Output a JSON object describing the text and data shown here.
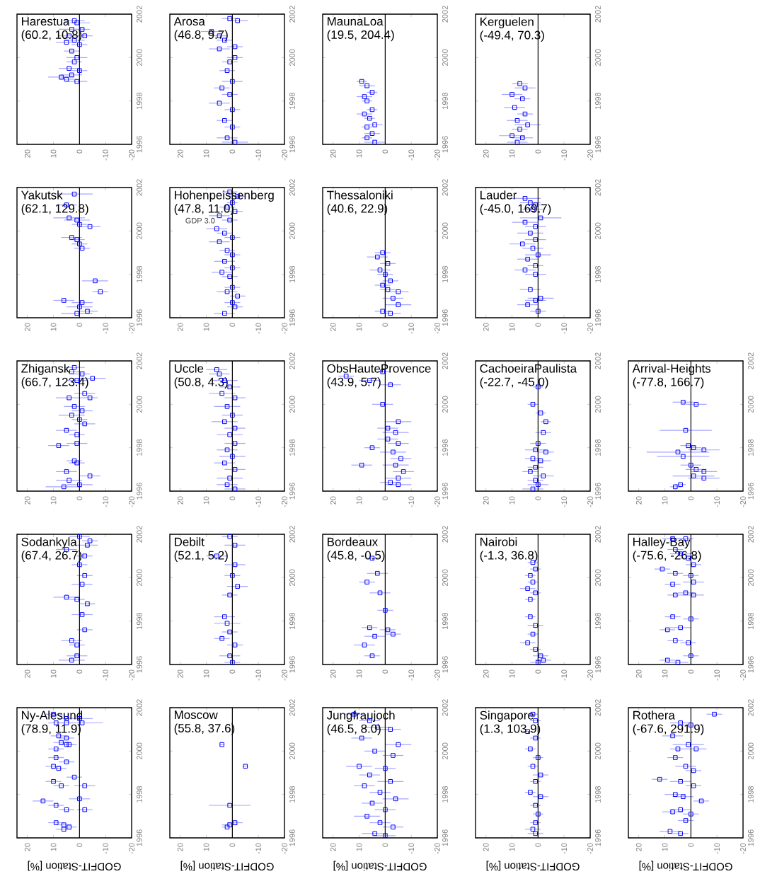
{
  "chart_data": [
    {
      "type": "scatter",
      "title": "Harestua",
      "subtitle": "(60.2, 10.8)",
      "xlim": [
        24,
        -20
      ],
      "ylim": [
        1996,
        2002
      ],
      "xticks": [
        20,
        10,
        0,
        -10,
        -20
      ],
      "yticks": [
        1996,
        1998,
        2000,
        2002
      ],
      "marker": "square",
      "ref_lines": [
        {
          "axis": "x",
          "value": 0
        }
      ],
      "series": [
        {
          "color": "#0000ff",
          "x": [
            2,
            1,
            3,
            -1,
            4,
            -2,
            2,
            5,
            0,
            3,
            1,
            2,
            4,
            0,
            3,
            7,
            5,
            1
          ],
          "values": [
            2001.7,
            2001.6,
            2001.3,
            2001.3,
            2001.0,
            2001.0,
            2000.8,
            2000.7,
            2000.6,
            2000.3,
            2000.0,
            1999.8,
            1999.5,
            1999.4,
            1999.2,
            1999.1,
            1999.0,
            1998.9
          ],
          "xerrors": [
            4,
            5,
            5,
            3,
            4,
            3,
            4,
            4,
            3,
            3,
            4,
            3,
            4,
            3,
            4,
            5,
            3,
            4
          ]
        }
      ]
    },
    {
      "type": "scatter",
      "title": "Arosa",
      "subtitle": "(46.8, 9.7)",
      "xlim": [
        24,
        -20
      ],
      "ylim": [
        1996,
        2002
      ],
      "xticks": [
        20,
        10,
        0,
        -10,
        -20
      ],
      "yticks": [
        1996,
        1998,
        2000,
        2002
      ],
      "marker": "square",
      "ref_lines": [
        {
          "axis": "x",
          "value": 0
        }
      ],
      "series": [
        {
          "color": "#0000ff",
          "x": [
            1,
            8,
            5,
            3,
            5,
            -1,
            1,
            2,
            0,
            4,
            1,
            5,
            0,
            3,
            0,
            2,
            -1,
            -1,
            -2
          ],
          "values": [
            2001.8,
            2001.2,
            2001.0,
            2000.8,
            2000.4,
            2000.5,
            1999.8,
            1999.4,
            1998.9,
            1998.6,
            1998.3,
            1997.9,
            1997.6,
            1997.1,
            1996.8,
            1996.3,
            1996.1,
            2000.0,
            2001.7
          ],
          "xerrors": [
            3,
            4,
            3,
            3,
            4,
            3,
            3,
            3,
            4,
            3,
            3,
            4,
            3,
            3,
            3,
            4,
            5,
            3,
            4
          ]
        }
      ]
    },
    {
      "type": "scatter",
      "title": "MaunaLoa",
      "subtitle": "(19.5, 204.4)",
      "xlim": [
        24,
        -20
      ],
      "ylim": [
        1996,
        2002
      ],
      "xticks": [
        20,
        10,
        0,
        -10,
        -20
      ],
      "yticks": [
        1996,
        1998,
        2000,
        2002
      ],
      "marker": "square",
      "ref_lines": [
        {
          "axis": "x",
          "value": 0
        }
      ],
      "series": [
        {
          "color": "#0000ff",
          "x": [
            9,
            7,
            5,
            8,
            7,
            5,
            8,
            6,
            4,
            7,
            5,
            7,
            4
          ],
          "values": [
            1998.9,
            1998.7,
            1998.4,
            1998.2,
            1998.0,
            1997.6,
            1997.4,
            1997.2,
            1996.9,
            1996.8,
            1996.5,
            1996.3,
            1996.1
          ],
          "xerrors": [
            2,
            3,
            2,
            3,
            2,
            2,
            3,
            2,
            3,
            2,
            3,
            2,
            4
          ]
        }
      ]
    },
    {
      "type": "scatter",
      "title": "Kerguelen",
      "subtitle": "(-49.4, 70.3)",
      "xlim": [
        24,
        -20
      ],
      "ylim": [
        1996,
        2002
      ],
      "xticks": [
        20,
        10,
        0,
        -10,
        -20
      ],
      "yticks": [
        1996,
        1998,
        2000,
        2002
      ],
      "marker": "square",
      "ref_lines": [
        {
          "axis": "x",
          "value": 0
        }
      ],
      "series": [
        {
          "color": "#0000ff",
          "x": [
            7,
            5,
            10,
            6,
            9,
            5,
            8,
            4,
            7,
            10,
            6,
            8
          ],
          "values": [
            1998.8,
            1998.6,
            1998.3,
            1998.1,
            1997.7,
            1997.4,
            1997.1,
            1996.9,
            1996.7,
            1996.4,
            1996.3,
            1996.1
          ],
          "xerrors": [
            3,
            4,
            4,
            3,
            4,
            3,
            4,
            5,
            3,
            5,
            4,
            4
          ]
        }
      ]
    },
    {
      "type": "scatter",
      "title": "Yakutsk",
      "subtitle": "(62.1, 129.8)",
      "xlim": [
        24,
        -20
      ],
      "ylim": [
        1996,
        2002
      ],
      "xticks": [
        20,
        10,
        0,
        -10,
        -20
      ],
      "yticks": [
        1996,
        1998,
        2000,
        2002
      ],
      "marker": "square",
      "ref_lines": [
        {
          "axis": "x",
          "value": 0
        }
      ],
      "series": [
        {
          "color": "#0000ff",
          "x": [
            2,
            5,
            4,
            1,
            -4,
            0,
            3,
            1,
            0,
            -1,
            -6,
            6,
            -1,
            -8,
            0,
            1,
            -3
          ],
          "values": [
            2001.7,
            2001.2,
            2000.6,
            2000.5,
            2000.2,
            2000.3,
            1999.7,
            1999.6,
            1999.4,
            1999.2,
            1997.7,
            1996.8,
            1996.7,
            1997.2,
            1996.5,
            1996.2,
            1996.3
          ],
          "xerrors": [
            7,
            4,
            6,
            5,
            4,
            3,
            4,
            3,
            3,
            3,
            5,
            4,
            4,
            3,
            5,
            6,
            4
          ]
        }
      ]
    },
    {
      "type": "scatter",
      "title": "Hohenpeissenberg",
      "subtitle": "(47.8, 11.0)",
      "annotations": [
        "GDP 3.0"
      ],
      "xlim": [
        24,
        -20
      ],
      "ylim": [
        1996,
        2002
      ],
      "xticks": [
        20,
        10,
        0,
        -10,
        -20
      ],
      "yticks": [
        1996,
        1998,
        2000,
        2002
      ],
      "marker": "square",
      "ref_lines": [
        {
          "axis": "x",
          "value": 0
        }
      ],
      "series": [
        {
          "color": "#0000ff",
          "x": [
            1,
            -2,
            0,
            2,
            -1,
            5,
            1,
            6,
            3,
            0,
            5,
            2,
            0,
            3,
            0,
            4,
            1,
            0,
            2,
            -2,
            0,
            -1,
            3
          ],
          "values": [
            2001.8,
            2001.6,
            2001.3,
            2001.1,
            2000.9,
            2000.7,
            2000.5,
            2000.1,
            1999.9,
            1999.7,
            1999.5,
            1999.1,
            1998.9,
            1998.6,
            1998.3,
            1998.1,
            1997.9,
            1997.4,
            1997.2,
            1997.0,
            1996.7,
            1996.5,
            1996.2
          ],
          "xerrors": [
            3,
            3,
            2,
            3,
            3,
            4,
            3,
            4,
            3,
            3,
            4,
            3,
            3,
            4,
            3,
            4,
            3,
            3,
            4,
            3,
            3,
            3,
            4
          ]
        }
      ]
    },
    {
      "type": "scatter",
      "title": "Thessaloniki",
      "subtitle": "(40.6, 22.9)",
      "xlim": [
        24,
        -20
      ],
      "ylim": [
        1996,
        2002
      ],
      "xticks": [
        20,
        10,
        0,
        -10,
        -20
      ],
      "yticks": [
        1996,
        1998,
        2000,
        2002
      ],
      "marker": "square",
      "ref_lines": [
        {
          "axis": "x",
          "value": 0
        }
      ],
      "series": [
        {
          "color": "#0000ff",
          "x": [
            1,
            -1,
            2,
            0,
            -2,
            1,
            3,
            -1,
            -5,
            -3,
            -5,
            1,
            -2
          ],
          "values": [
            1999.0,
            1998.5,
            1998.2,
            1998.0,
            1997.7,
            1997.5,
            1998.8,
            1997.3,
            1997.2,
            1996.9,
            1996.6,
            1996.3,
            1996.2
          ],
          "xerrors": [
            3,
            3,
            4,
            3,
            3,
            3,
            4,
            3,
            4,
            4,
            5,
            3,
            4
          ]
        }
      ]
    },
    {
      "type": "scatter",
      "title": "Lauder",
      "subtitle": "(-45.0, 169.7)",
      "xlim": [
        24,
        -20
      ],
      "ylim": [
        1996,
        2002
      ],
      "xticks": [
        20,
        10,
        0,
        -10,
        -20
      ],
      "yticks": [
        1996,
        1998,
        2000,
        2002
      ],
      "marker": "square",
      "ref_lines": [
        {
          "axis": "x",
          "value": 0
        }
      ],
      "series": [
        {
          "color": "#0000ff",
          "x": [
            5,
            3,
            1,
            2,
            -1,
            5,
            1,
            3,
            1,
            6,
            2,
            0,
            4,
            1,
            5,
            1,
            3,
            -1,
            4,
            0,
            1
          ],
          "values": [
            2001.5,
            2001.3,
            2001.2,
            2001.0,
            2000.6,
            2000.4,
            2000.2,
            1999.9,
            1999.6,
            1999.4,
            1999.2,
            1998.9,
            1998.7,
            1998.4,
            1998.2,
            1998.0,
            1997.3,
            1996.9,
            1996.6,
            1996.3,
            1996.8
          ],
          "xerrors": [
            6,
            4,
            3,
            4,
            8,
            5,
            4,
            5,
            4,
            5,
            4,
            5,
            4,
            3,
            4,
            4,
            4,
            5,
            4,
            3,
            4
          ]
        }
      ]
    },
    {
      "type": "scatter",
      "title": "Zhigansk",
      "subtitle": "(66.7, 123.4)",
      "xlim": [
        24,
        -20
      ],
      "ylim": [
        1996,
        2002
      ],
      "xticks": [
        20,
        10,
        0,
        -10,
        -20
      ],
      "yticks": [
        1996,
        1998,
        2000,
        2002
      ],
      "marker": "square",
      "ref_lines": [
        {
          "axis": "x",
          "value": 0
        }
      ],
      "series": [
        {
          "color": "#0000ff",
          "x": [
            2,
            3,
            -5,
            -1,
            1,
            -2,
            4,
            -4,
            2,
            -1,
            3,
            0,
            -2,
            5,
            1,
            1,
            8,
            2,
            1,
            5,
            -4,
            4,
            0,
            6
          ],
          "values": [
            2001.7,
            2001.5,
            2001.2,
            2001.4,
            2001.1,
            2000.5,
            2000.3,
            2000.3,
            1999.9,
            1999.7,
            1999.5,
            1999.3,
            1999.1,
            1998.8,
            1998.6,
            1998.2,
            1998.1,
            1997.4,
            1997.3,
            1996.9,
            1996.7,
            1996.5,
            1996.3,
            1996.2
          ],
          "xerrors": [
            4,
            5,
            5,
            3,
            4,
            4,
            5,
            3,
            4,
            4,
            5,
            3,
            4,
            4,
            3,
            4,
            4,
            3,
            3,
            4,
            4,
            5,
            5,
            7
          ]
        }
      ]
    },
    {
      "type": "scatter",
      "title": "Uccle",
      "subtitle": "(50.8, 4.3)",
      "xlim": [
        24,
        -20
      ],
      "ylim": [
        1996,
        2002
      ],
      "xticks": [
        20,
        10,
        0,
        -10,
        -20
      ],
      "yticks": [
        1996,
        1998,
        2000,
        2002
      ],
      "marker": "square",
      "ref_lines": [
        {
          "axis": "x",
          "value": 0
        }
      ],
      "series": [
        {
          "color": "#0000ff",
          "x": [
            6,
            5,
            3,
            1,
            4,
            -1,
            2,
            0,
            3,
            -1,
            1,
            -1,
            2,
            0,
            3,
            -1,
            1,
            2,
            -1
          ],
          "values": [
            2001.6,
            2001.4,
            2001.1,
            2000.8,
            2000.5,
            2000.3,
            1999.9,
            1999.5,
            1999.2,
            1998.9,
            1998.6,
            1998.2,
            1997.9,
            1997.6,
            1997.3,
            1997.0,
            1996.6,
            1996.3,
            1996.1
          ],
          "xerrors": [
            4,
            4,
            5,
            4,
            5,
            4,
            5,
            4,
            5,
            4,
            5,
            4,
            4,
            5,
            4,
            4,
            5,
            4,
            4
          ]
        }
      ]
    },
    {
      "type": "scatter",
      "title": "ObsHauteProvence",
      "subtitle": "(43.9, 5.7)",
      "xlim": [
        24,
        -20
      ],
      "ylim": [
        1996,
        2002
      ],
      "xticks": [
        20,
        10,
        0,
        -10,
        -20
      ],
      "yticks": [
        1996,
        1998,
        2000,
        2002
      ],
      "marker": "square",
      "ref_lines": [
        {
          "axis": "x",
          "value": 0
        }
      ],
      "series": [
        {
          "color": "#0000ff",
          "x": [
            15,
            6,
            9,
            5,
            1,
            -2,
            1,
            -5,
            -1,
            -4,
            -1,
            -5,
            -3,
            -6,
            -4,
            -7,
            -5,
            -2,
            -5
          ],
          "values": [
            2001.3,
            2001.1,
            1997.2,
            1998.0,
            2001.5,
            2000.9,
            2000.0,
            1999.2,
            1998.9,
            1998.7,
            1998.4,
            1998.2,
            1997.8,
            1997.5,
            1997.2,
            1996.9,
            1996.6,
            1996.4,
            1996.3
          ],
          "xerrors": [
            3,
            4,
            4,
            3,
            3,
            4,
            4,
            5,
            4,
            5,
            4,
            4,
            5,
            4,
            5,
            4,
            5,
            4,
            5
          ]
        }
      ]
    },
    {
      "type": "scatter",
      "title": "CachoeiraPaulista",
      "subtitle": "(-22.7, -45.0)",
      "xlim": [
        24,
        -20
      ],
      "ylim": [
        1996,
        2002
      ],
      "xticks": [
        20,
        10,
        0,
        -10,
        -20
      ],
      "yticks": [
        1996,
        1998,
        2000,
        2002
      ],
      "marker": "square",
      "ref_lines": [
        {
          "axis": "x",
          "value": 0
        }
      ],
      "series": [
        {
          "color": "#0000ff",
          "x": [
            0,
            2,
            -1,
            -3,
            -2,
            0,
            1,
            -3,
            2,
            -1,
            1,
            3,
            -2,
            1,
            0,
            2
          ],
          "values": [
            2000.8,
            2000.0,
            1999.6,
            1999.2,
            1998.7,
            1998.2,
            1997.9,
            1997.8,
            1997.5,
            1997.4,
            1997.1,
            1996.9,
            1996.7,
            1996.5,
            1996.3,
            1996.1
          ],
          "xerrors": [
            2,
            2,
            2,
            2,
            3,
            3,
            4,
            3,
            3,
            4,
            3,
            3,
            4,
            3,
            4,
            4
          ]
        }
      ]
    },
    {
      "type": "scatter",
      "title": "Arrival-Heights",
      "subtitle": "(-77.8, 166.7)",
      "xlim": [
        24,
        -20
      ],
      "ylim": [
        1996,
        2002
      ],
      "xticks": [
        20,
        10,
        0,
        -10,
        -20
      ],
      "yticks": [
        1996,
        1998,
        2000,
        2002
      ],
      "marker": "square",
      "ref_lines": [
        {
          "axis": "x",
          "value": 0
        }
      ],
      "series": [
        {
          "color": "#0000ff",
          "x": [
            3,
            -2,
            2,
            1,
            -1,
            -5,
            5,
            3,
            0,
            -2,
            -5,
            -1,
            -5,
            4,
            6
          ],
          "values": [
            2000.1,
            2000.0,
            1998.8,
            1998.1,
            1998.0,
            1997.9,
            1997.8,
            1997.6,
            1997.2,
            1997.0,
            1996.9,
            1996.7,
            1996.6,
            1996.3,
            1996.2
          ],
          "xerrors": [
            4,
            4,
            10,
            3,
            3,
            6,
            12,
            10,
            4,
            4,
            5,
            8,
            6,
            2,
            2
          ]
        }
      ]
    },
    {
      "type": "scatter",
      "title": "Sodankyla",
      "subtitle": "(67.4, 26.7)",
      "xlim": [
        24,
        -20
      ],
      "ylim": [
        1996,
        2002
      ],
      "xticks": [
        20,
        10,
        0,
        -10,
        -20
      ],
      "yticks": [
        1996,
        1998,
        2000,
        2002
      ],
      "marker": "square",
      "ref_lines": [
        {
          "axis": "x",
          "value": 0
        }
      ],
      "series": [
        {
          "color": "#0000ff",
          "x": [
            0,
            -4,
            -3,
            5,
            -2,
            0,
            -2,
            -1,
            5,
            1,
            -3,
            -1,
            -2,
            3,
            1,
            1,
            3
          ],
          "values": [
            2001.9,
            2001.7,
            2001.5,
            2001.3,
            2001.0,
            2000.6,
            2000.1,
            1999.7,
            1999.1,
            1999.0,
            1998.8,
            1998.3,
            1997.6,
            1997.1,
            1996.9,
            1996.4,
            1996.2
          ],
          "xerrors": [
            4,
            3,
            4,
            4,
            3,
            3,
            3,
            4,
            5,
            3,
            3,
            4,
            3,
            4,
            3,
            4,
            5
          ]
        }
      ]
    },
    {
      "type": "scatter",
      "title": "Debilt",
      "subtitle": "(52.1, 5.2)",
      "xlim": [
        24,
        -20
      ],
      "ylim": [
        1996,
        2002
      ],
      "xticks": [
        20,
        10,
        0,
        -10,
        -20
      ],
      "yticks": [
        1996,
        1998,
        2000,
        2002
      ],
      "marker": "square",
      "ref_lines": [
        {
          "axis": "x",
          "value": 0
        }
      ],
      "series": [
        {
          "color": "#0000ff",
          "x": [
            1,
            -1,
            6,
            -1,
            0,
            -2,
            1,
            2,
            4,
            1,
            -1,
            1,
            0,
            3
          ],
          "values": [
            2001.9,
            2001.5,
            2001.0,
            2000.6,
            2000.1,
            1999.6,
            1999.2,
            1997.9,
            1997.2,
            1997.5,
            1996.9,
            1996.4,
            1996.1,
            1998.2
          ],
          "xerrors": [
            3,
            4,
            4,
            4,
            3,
            4,
            3,
            5,
            3,
            3,
            3,
            4,
            3,
            4
          ]
        }
      ]
    },
    {
      "type": "scatter",
      "title": "Bordeaux",
      "subtitle": "(45.8, -0.5)",
      "xlim": [
        24,
        -20
      ],
      "ylim": [
        1996,
        2002
      ],
      "xticks": [
        20,
        10,
        0,
        -10,
        -20
      ],
      "yticks": [
        1996,
        1998,
        2000,
        2002
      ],
      "marker": "square",
      "ref_lines": [
        {
          "axis": "x",
          "value": 0
        }
      ],
      "series": [
        {
          "color": "#0000ff",
          "x": [
            5,
            3,
            7,
            2,
            0,
            6,
            4,
            -1,
            -3,
            8,
            5
          ],
          "values": [
            2000.9,
            2000.2,
            1999.8,
            1999.3,
            1998.5,
            1997.7,
            1997.3,
            1997.6,
            1997.4,
            1996.9,
            1996.4
          ],
          "xerrors": [
            3,
            4,
            3,
            4,
            3,
            3,
            4,
            3,
            3,
            4,
            3
          ]
        }
      ]
    },
    {
      "type": "scatter",
      "title": "Nairobi",
      "subtitle": "(-1.3, 36.8)",
      "xlim": [
        24,
        -20
      ],
      "ylim": [
        1996,
        2002
      ],
      "xticks": [
        20,
        10,
        0,
        -10,
        -20
      ],
      "yticks": [
        1996,
        1998,
        2000,
        2002
      ],
      "marker": "square",
      "ref_lines": [
        {
          "axis": "x",
          "value": 0
        }
      ],
      "series": [
        {
          "color": "#0000ff",
          "x": [
            2,
            1,
            3,
            2,
            4,
            1,
            3,
            3,
            1,
            2,
            4,
            1,
            -1,
            -2,
            0
          ],
          "values": [
            2000.7,
            2000.4,
            2000.1,
            1999.8,
            1999.5,
            1999.3,
            1999.0,
            1998.2,
            1997.8,
            1997.4,
            1997.0,
            1996.7,
            1996.4,
            1996.2,
            1996.1
          ],
          "xerrors": [
            2,
            2,
            2,
            2,
            3,
            2,
            2,
            2,
            3,
            2,
            3,
            2,
            3,
            3,
            3
          ]
        }
      ]
    },
    {
      "type": "scatter",
      "title": "Halley-Bay",
      "subtitle": "(-75.6, -26.8)",
      "xlim": [
        24,
        -20
      ],
      "ylim": [
        1996,
        2002
      ],
      "xticks": [
        20,
        10,
        0,
        -10,
        -20
      ],
      "yticks": [
        1996,
        1998,
        2000,
        2002
      ],
      "marker": "square",
      "ref_lines": [
        {
          "axis": "x",
          "value": 0
        }
      ],
      "series": [
        {
          "color": "#0000ff",
          "x": [
            7,
            2,
            6,
            1,
            4,
            -1,
            11,
            6,
            0,
            7,
            -1,
            2,
            6,
            -1,
            7,
            0,
            9,
            4,
            6,
            1,
            9,
            5,
            0
          ],
          "values": [
            2001.8,
            2001.8,
            2001.3,
            2000.9,
            2001.1,
            2000.6,
            2000.4,
            2000.2,
            2000.1,
            1999.7,
            1999.8,
            1999.3,
            1999.2,
            1999.2,
            1998.2,
            1998.1,
            1997.6,
            1997.7,
            1997.1,
            1997.0,
            1996.2,
            1996.1,
            1996.4
          ],
          "xerrors": [
            4,
            3,
            3,
            3,
            4,
            3,
            3,
            3,
            3,
            3,
            4,
            3,
            3,
            4,
            3,
            3,
            3,
            4,
            3,
            3,
            3,
            4,
            3
          ]
        }
      ]
    },
    {
      "type": "scatter",
      "title": "Ny-Alesund",
      "subtitle": "(78.9, 11.9)",
      "xlabel": "GODFIT-Station [%]",
      "xlim": [
        24,
        -20
      ],
      "ylim": [
        1996,
        2002
      ],
      "xticks": [
        20,
        10,
        0,
        -10,
        -20
      ],
      "yticks": [
        1996,
        1998,
        2000,
        2002
      ],
      "marker": "square",
      "ref_lines": [
        {
          "axis": "x",
          "value": 0
        }
      ],
      "series": [
        {
          "color": "#0000ff",
          "x": [
            10,
            5,
            9,
            5,
            0,
            -1,
            8,
            5,
            7,
            5,
            9,
            4,
            9,
            10,
            5,
            8,
            2,
            10,
            7,
            -2,
            0,
            14,
            9,
            5,
            -2,
            9,
            6,
            4,
            6
          ],
          "values": [
            2001.7,
            2001.5,
            2001.3,
            2001.3,
            2001.5,
            2001.3,
            2000.7,
            2000.6,
            2000.4,
            2000.3,
            2000.1,
            2000.3,
            1999.7,
            1999.3,
            1999.5,
            1999.2,
            1998.8,
            1998.6,
            1998.4,
            1998.4,
            1997.8,
            1997.7,
            1997.5,
            1997.3,
            1997.3,
            1996.7,
            1996.6,
            1996.5,
            1996.4
          ],
          "xerrors": [
            3,
            3,
            3,
            3,
            5,
            8,
            3,
            3,
            3,
            3,
            3,
            3,
            3,
            3,
            3,
            3,
            3,
            3,
            3,
            4,
            4,
            4,
            3,
            3,
            3,
            3,
            3,
            3,
            3
          ]
        }
      ]
    },
    {
      "type": "scatter",
      "title": "Moscow",
      "subtitle": "(55.8, 37.6)",
      "xlabel": "GODFIT-Station [%]",
      "xlim": [
        24,
        -20
      ],
      "ylim": [
        1996,
        2002
      ],
      "xticks": [
        20,
        10,
        0,
        -10,
        -20
      ],
      "yticks": [
        1996,
        1998,
        2000,
        2002
      ],
      "marker": "square",
      "ref_lines": [
        {
          "axis": "x",
          "value": 0
        }
      ],
      "series": [
        {
          "color": "#0000ff",
          "x": [
            4,
            -5,
            1,
            -1,
            1,
            2
          ],
          "values": [
            2000.3,
            1999.3,
            1997.5,
            1996.7,
            1996.6,
            1996.5
          ],
          "xerrors": [
            1,
            1,
            8,
            3,
            3,
            2
          ]
        }
      ]
    },
    {
      "type": "scatter",
      "title": "Jungfraujoch",
      "subtitle": "(46.5, 8.0)",
      "xlabel": "GODFIT-Station [%]",
      "xlim": [
        24,
        -20
      ],
      "ylim": [
        1996,
        2002
      ],
      "xticks": [
        20,
        10,
        0,
        -10,
        -20
      ],
      "yticks": [
        1996,
        1998,
        2000,
        2002
      ],
      "marker": "square",
      "ref_lines": [
        {
          "axis": "x",
          "value": 0
        }
      ],
      "series": [
        {
          "color": "#0000ff",
          "x": [
            12,
            6,
            3,
            -2,
            9,
            -5,
            4,
            -3,
            10,
            0,
            6,
            -2,
            8,
            2,
            -4,
            5,
            0,
            7,
            2,
            -3,
            4,
            0
          ],
          "values": [
            2001.7,
            2001.4,
            2001.1,
            2001.0,
            2000.6,
            2000.3,
            2000.0,
            1999.8,
            1999.3,
            1999.2,
            1998.9,
            1998.6,
            1998.4,
            1998.1,
            1997.8,
            1997.6,
            1997.3,
            1997.0,
            1996.7,
            1996.5,
            1996.2,
            1996.1
          ],
          "xerrors": [
            4,
            4,
            5,
            4,
            4,
            5,
            4,
            4,
            5,
            4,
            4,
            5,
            4,
            4,
            5,
            4,
            4,
            5,
            4,
            4,
            5,
            4
          ]
        }
      ]
    },
    {
      "type": "scatter",
      "title": "Singapore",
      "subtitle": "(1.3, 103.9)",
      "xlabel": "GODFIT-Station [%]",
      "xlim": [
        24,
        -20
      ],
      "ylim": [
        1996,
        2002
      ],
      "xticks": [
        20,
        10,
        0,
        -10,
        -20
      ],
      "yticks": [
        1996,
        1998,
        2000,
        2002
      ],
      "marker": "square",
      "ref_lines": [
        {
          "axis": "x",
          "value": 0
        }
      ],
      "series": [
        {
          "color": "#0000ff",
          "x": [
            2,
            1,
            4,
            1,
            3,
            0,
            2,
            -1,
            1,
            3,
            -1,
            1,
            0,
            1,
            2,
            1
          ],
          "values": [
            2001.7,
            2001.4,
            2000.9,
            2000.6,
            2000.1,
            1999.7,
            1999.3,
            1998.9,
            1998.6,
            1998.1,
            1997.9,
            1997.5,
            1997.1,
            1996.7,
            1996.4,
            1996.2
          ],
          "xerrors": [
            2,
            2,
            2,
            2,
            2,
            2,
            2,
            3,
            2,
            2,
            3,
            2,
            2,
            2,
            3,
            3
          ]
        }
      ]
    },
    {
      "type": "scatter",
      "title": "Rothera",
      "subtitle": "(-67.6, 291.9)",
      "xlabel": "GODFIT-Station [%]",
      "xlim": [
        24,
        -20
      ],
      "ylim": [
        1996,
        2002
      ],
      "xticks": [
        20,
        10,
        0,
        -10,
        -20
      ],
      "yticks": [
        1996,
        1998,
        2000,
        2002
      ],
      "marker": "square",
      "ref_lines": [
        {
          "axis": "x",
          "value": 0
        }
      ],
      "series": [
        {
          "color": "#0000ff",
          "x": [
            -9,
            4,
            0,
            7,
            1,
            5,
            -2,
            6,
            2,
            -1,
            12,
            4,
            -1,
            6,
            -4,
            3,
            4,
            0,
            7,
            2,
            8,
            4
          ],
          "values": [
            2001.7,
            2001.3,
            2001.2,
            2000.7,
            2000.3,
            2000.1,
            2000.1,
            1999.7,
            1999.3,
            1999.1,
            1998.7,
            1998.6,
            1998.4,
            1998.0,
            1997.7,
            1997.9,
            1997.3,
            1997.1,
            1997.2,
            1996.8,
            1996.3,
            1996.2
          ],
          "xerrors": [
            3,
            4,
            5,
            4,
            6,
            3,
            4,
            3,
            4,
            3,
            3,
            4,
            3,
            4,
            3,
            4,
            4,
            3,
            4,
            3,
            4,
            3
          ]
        }
      ]
    }
  ]
}
